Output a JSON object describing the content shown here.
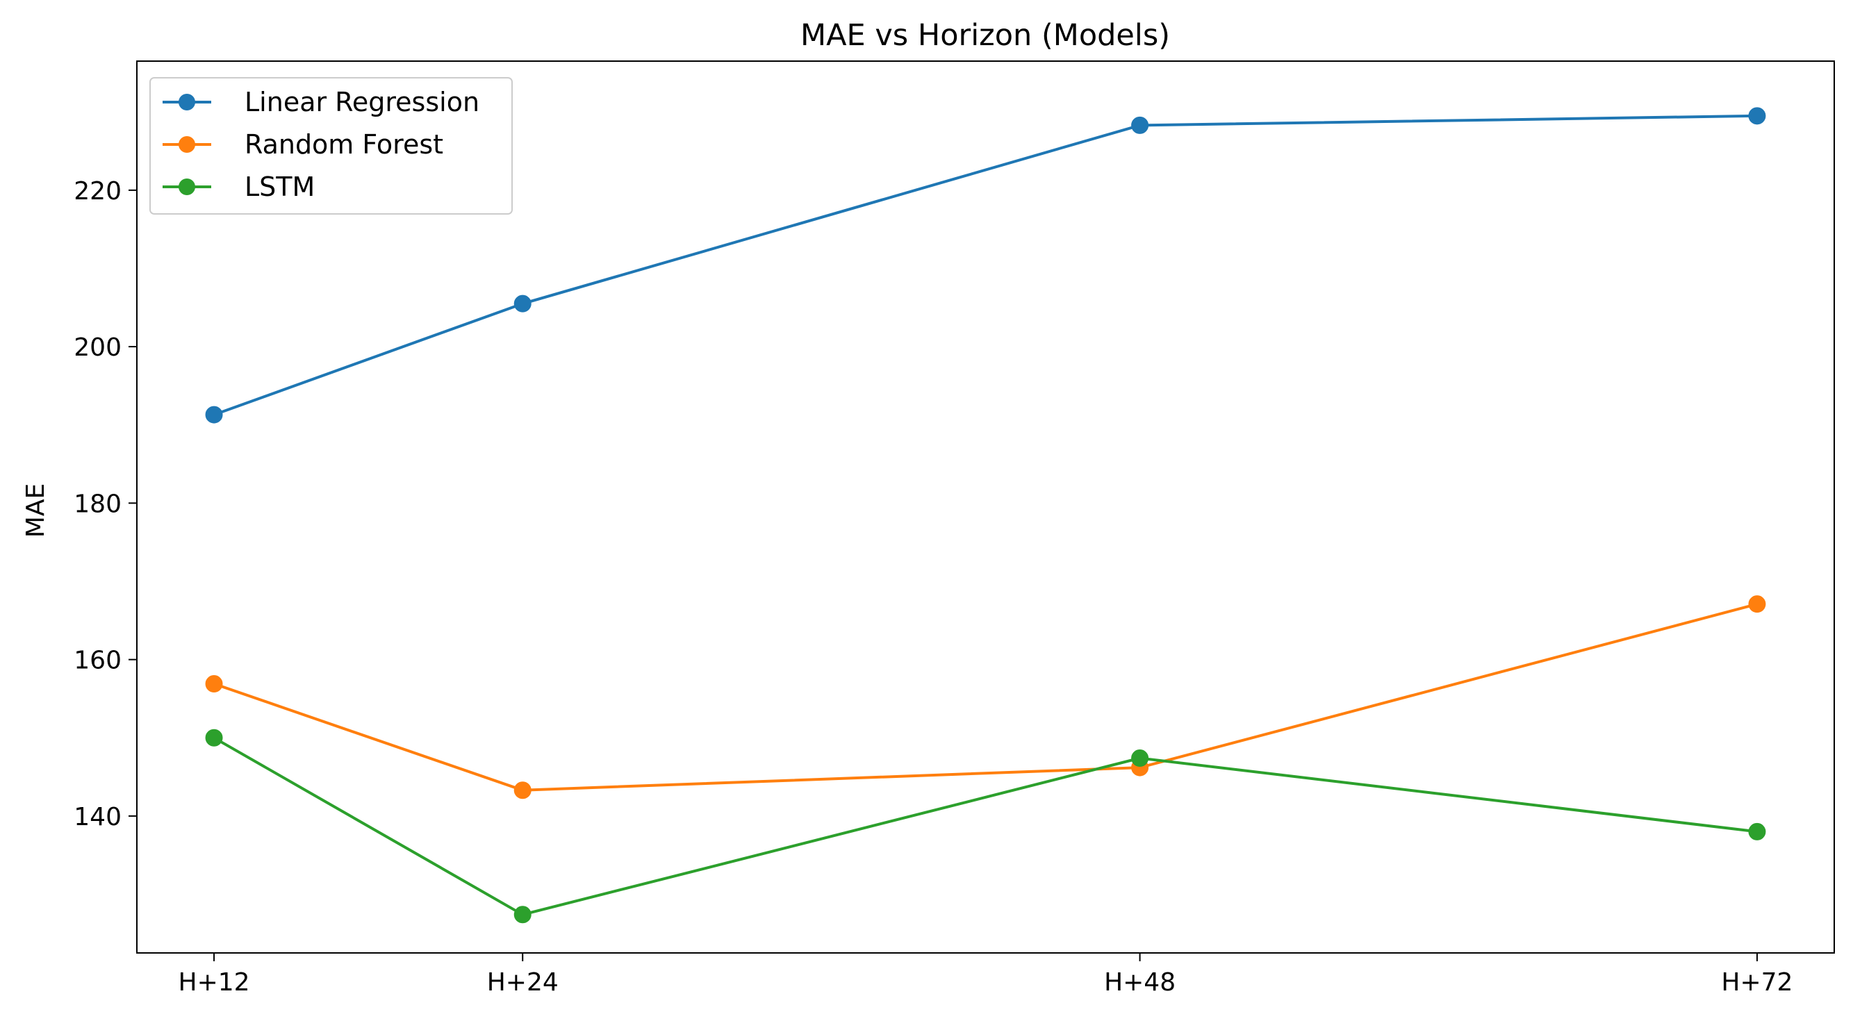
{
  "chart_data": {
    "type": "line",
    "title": "MAE vs Horizon (Models)",
    "xlabel": "",
    "ylabel": "MAE",
    "x": [
      12,
      24,
      48,
      72
    ],
    "x_tick_labels": [
      "H+12",
      "H+24",
      "H+48",
      "H+72"
    ],
    "xlim": [
      9,
      75
    ],
    "ylim": [
      122.5,
      236.5
    ],
    "y_ticks": [
      140,
      160,
      180,
      200,
      220
    ],
    "y_tick_labels": [
      "140",
      "160",
      "180",
      "200",
      "220"
    ],
    "grid": false,
    "legend_position": "top-left",
    "series": [
      {
        "name": "Linear Regression",
        "color": "#1f77b4",
        "marker": "circle",
        "values": [
          191.3,
          205.5,
          228.3,
          229.5
        ]
      },
      {
        "name": "Random Forest",
        "color": "#ff7f0e",
        "marker": "circle",
        "values": [
          156.9,
          143.3,
          146.2,
          167.1
        ]
      },
      {
        "name": "LSTM",
        "color": "#2ca02c",
        "marker": "circle",
        "values": [
          150.0,
          127.4,
          147.4,
          138.0
        ]
      }
    ]
  }
}
